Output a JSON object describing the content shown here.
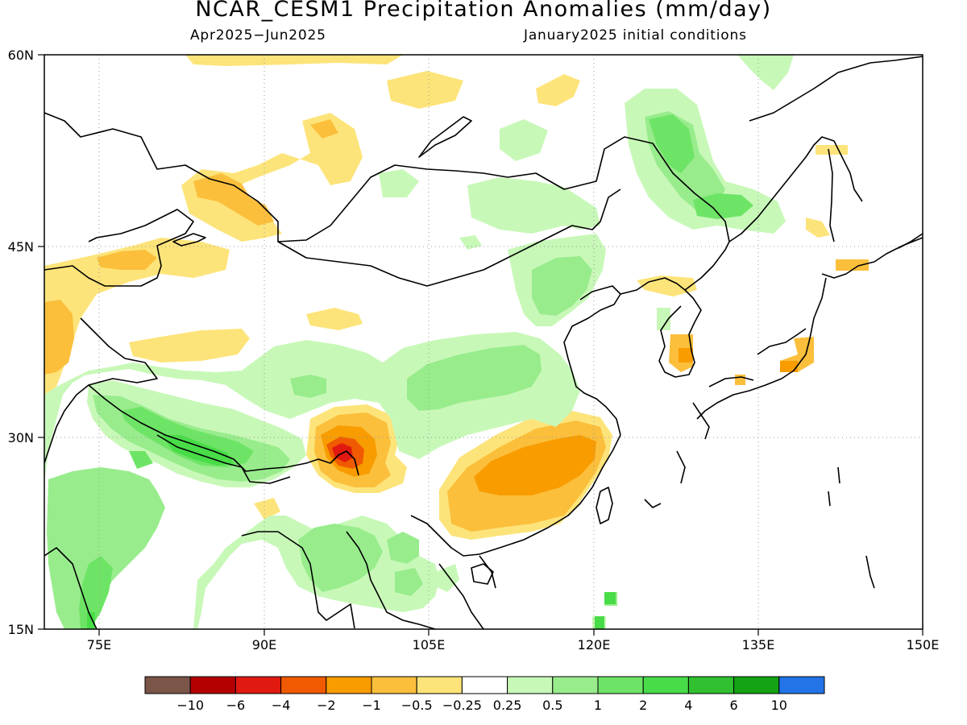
{
  "header": {
    "title": "NCAR_CESM1 Precipitation Anomalies (mm/day)",
    "period": "Apr2025−Jun2025",
    "init": "January2025 initial conditions"
  },
  "axes": {
    "lat_labels": [
      "60N",
      "45N",
      "30N",
      "15N"
    ],
    "lon_labels": [
      "75E",
      "90E",
      "105E",
      "120E",
      "135E",
      "150E"
    ]
  },
  "colorbar": {
    "colors": [
      "#7a5548",
      "#b40000",
      "#e01a10",
      "#f05a00",
      "#f89c00",
      "#fbbf3c",
      "#fde47a",
      "#ffffff",
      "#c8f8b8",
      "#98ec8c",
      "#6ee466",
      "#48dc48",
      "#30c030",
      "#13a313",
      "#2374e6"
    ],
    "labels": [
      "−10",
      "−6",
      "−4",
      "−2",
      "−1",
      "−0.5",
      "−0.25",
      "0.25",
      "0.5",
      "1",
      "2",
      "4",
      "6",
      "10"
    ]
  },
  "palette": {
    "pale_yellow": "#fde47a",
    "light_orange": "#fbbf3c",
    "orange": "#f89c00",
    "dark_orange": "#f05a00",
    "red": "#e01a10",
    "pale_green": "#c8f8b8",
    "light_green": "#98ec8c",
    "green": "#6ee466",
    "bright_green": "#48dc48"
  }
}
